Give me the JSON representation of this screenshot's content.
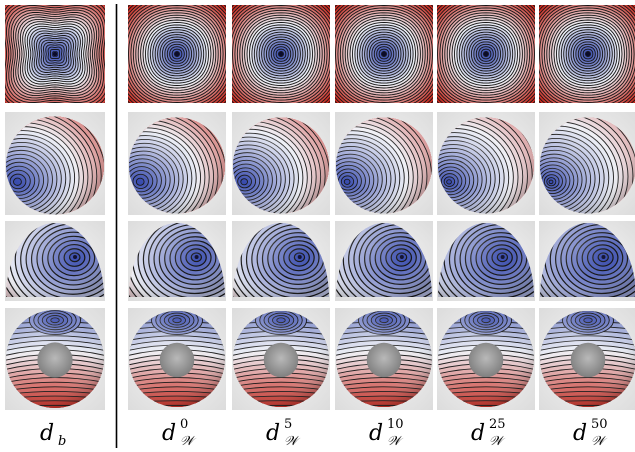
{
  "figure": {
    "columns": [
      {
        "id": "db",
        "symbol": "d",
        "subscript": "b",
        "superscript": ""
      },
      {
        "id": "dw0",
        "symbol": "d",
        "subscript": "𝒲",
        "superscript": "0"
      },
      {
        "id": "dw5",
        "symbol": "d",
        "subscript": "𝒲",
        "superscript": "5"
      },
      {
        "id": "dw10",
        "symbol": "d",
        "subscript": "𝒲",
        "superscript": "10"
      },
      {
        "id": "dw25",
        "symbol": "d",
        "subscript": "𝒲",
        "superscript": "25"
      },
      {
        "id": "dw50",
        "symbol": "d",
        "subscript": "𝒲",
        "superscript": "50"
      }
    ],
    "rows": [
      {
        "id": "square",
        "shape": "square-patch"
      },
      {
        "id": "sphere",
        "shape": "sphere"
      },
      {
        "id": "hemisphere",
        "shape": "hemisphere"
      },
      {
        "id": "torus",
        "shape": "torus"
      }
    ],
    "colors": {
      "near": "#2b3fa8",
      "mid": "#eef0f6",
      "far": "#c8281e",
      "isoline": "#151515",
      "separator": "#000000"
    }
  }
}
